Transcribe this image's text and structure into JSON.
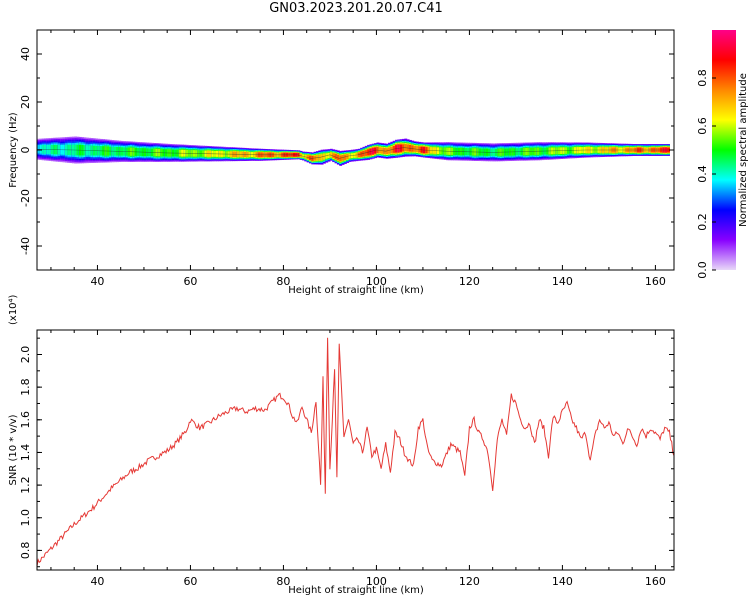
{
  "title": "GN03.2023.201.20.07.C41",
  "chart_data": [
    {
      "type": "heatmap",
      "xlabel": "Height of straight line (km)",
      "ylabel": "Frequency (Hz)",
      "xlim": [
        27,
        164
      ],
      "ylim": [
        -50,
        50
      ],
      "x_ticks": [
        40,
        60,
        80,
        100,
        120,
        140,
        160
      ],
      "y_ticks": [
        -40,
        -20,
        0,
        20,
        40
      ],
      "colorbar": {
        "label": "Normalized spectral amplitude",
        "range": [
          0,
          1
        ],
        "ticks": [
          0.0,
          0.2,
          0.4,
          0.6,
          0.8
        ],
        "colormap": [
          "#e8d8f8",
          "#8800ff",
          "#0000ff",
          "#00ffff",
          "#00ff00",
          "#ffff00",
          "#ff8800",
          "#ff0000",
          "#ff0088"
        ]
      },
      "ridge": {
        "x": [
          27,
          35,
          45,
          55,
          65,
          75,
          83,
          84,
          86,
          88,
          90,
          92,
          94,
          96,
          98,
          100,
          102,
          104,
          106,
          108,
          110,
          115,
          125,
          135,
          145,
          155,
          163
        ],
        "freq": [
          0.3,
          0.0,
          -0.6,
          -1.2,
          -1.6,
          -2.0,
          -2.0,
          -2.5,
          -3.5,
          -3.0,
          -2.0,
          -3.5,
          -2.5,
          -2.0,
          -1.0,
          0.0,
          -0.5,
          0.5,
          1.0,
          0.5,
          0.0,
          -0.5,
          -1.0,
          -0.5,
          0.0,
          0.0,
          0.0
        ],
        "halfwidth": [
          3.5,
          4.5,
          3.5,
          3.0,
          2.5,
          2.0,
          1.5,
          1.5,
          2.0,
          2.5,
          2.0,
          2.5,
          2.0,
          2.0,
          2.5,
          2.5,
          2.5,
          3.0,
          3.0,
          2.5,
          2.5,
          3.0,
          3.0,
          3.0,
          2.5,
          2.0,
          2.0
        ],
        "peak": [
          0.45,
          0.5,
          0.55,
          0.6,
          0.7,
          0.85,
          0.95,
          0.8,
          0.9,
          0.7,
          0.85,
          0.9,
          0.7,
          0.9,
          0.95,
          0.95,
          0.85,
          0.95,
          0.95,
          0.9,
          0.9,
          0.6,
          0.55,
          0.6,
          0.7,
          0.85,
          0.95
        ]
      }
    },
    {
      "type": "line",
      "xlabel": "Height of straight line (km)",
      "ylabel": "SNR (10 * v/v)",
      "y_multiplier": "(x10⁴)",
      "xlim": [
        27,
        164
      ],
      "ylim": [
        0.68,
        2.15
      ],
      "x_ticks": [
        40,
        60,
        80,
        100,
        120,
        140,
        160
      ],
      "y_ticks": [
        0.8,
        1.0,
        1.2,
        1.4,
        1.6,
        1.8,
        2.0
      ],
      "series": [
        {
          "color": "#e53935",
          "x": [
            27,
            29,
            31,
            33,
            35,
            37,
            39,
            41,
            43,
            45,
            47,
            49,
            51,
            53,
            55,
            57,
            59,
            60,
            62,
            64,
            66,
            68,
            70,
            72,
            74,
            76,
            78,
            79,
            80,
            81,
            82,
            83,
            84,
            85,
            86,
            87,
            88,
            88.5,
            89,
            89.5,
            90,
            91,
            91.5,
            92,
            93,
            94,
            95,
            96,
            97,
            98,
            99,
            100,
            101,
            102,
            103,
            104,
            105,
            106,
            107,
            108,
            109,
            110,
            111,
            112,
            114,
            116,
            118,
            119,
            120,
            121,
            122,
            123,
            124,
            125,
            126,
            127,
            128,
            129,
            130,
            131,
            132,
            133,
            134,
            135,
            136,
            137,
            138,
            139,
            140,
            141,
            142,
            143,
            144,
            145,
            146,
            147,
            148,
            149,
            150,
            151,
            152,
            153,
            154,
            155,
            156,
            157,
            158,
            159,
            160,
            161,
            162,
            163,
            164
          ],
          "y": [
            0.72,
            0.78,
            0.84,
            0.9,
            0.96,
            1.01,
            1.06,
            1.12,
            1.18,
            1.23,
            1.28,
            1.31,
            1.35,
            1.38,
            1.41,
            1.46,
            1.53,
            1.6,
            1.55,
            1.58,
            1.62,
            1.65,
            1.67,
            1.65,
            1.67,
            1.66,
            1.72,
            1.75,
            1.74,
            1.7,
            1.62,
            1.58,
            1.68,
            1.6,
            1.52,
            1.72,
            1.2,
            1.85,
            1.15,
            2.12,
            1.3,
            1.9,
            1.25,
            2.05,
            1.5,
            1.6,
            1.45,
            1.48,
            1.4,
            1.55,
            1.38,
            1.42,
            1.3,
            1.45,
            1.28,
            1.52,
            1.48,
            1.4,
            1.35,
            1.32,
            1.55,
            1.6,
            1.42,
            1.35,
            1.32,
            1.45,
            1.4,
            1.25,
            1.55,
            1.6,
            1.52,
            1.48,
            1.4,
            1.18,
            1.48,
            1.6,
            1.5,
            1.75,
            1.7,
            1.6,
            1.55,
            1.58,
            1.45,
            1.6,
            1.55,
            1.38,
            1.62,
            1.58,
            1.65,
            1.7,
            1.6,
            1.55,
            1.48,
            1.52,
            1.35,
            1.5,
            1.6,
            1.55,
            1.58,
            1.5,
            1.52,
            1.45,
            1.55,
            1.5,
            1.45,
            1.55,
            1.5,
            1.55,
            1.52,
            1.48,
            1.55,
            1.52,
            1.38
          ]
        }
      ]
    }
  ]
}
